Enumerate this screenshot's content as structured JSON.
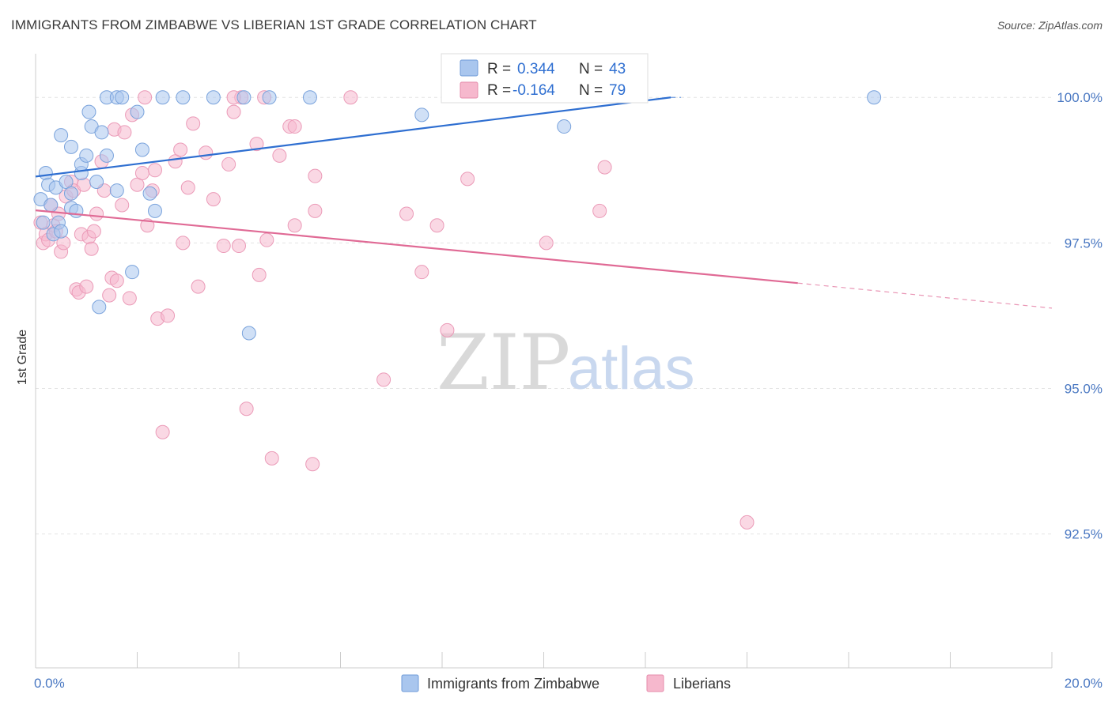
{
  "title": "IMMIGRANTS FROM ZIMBABWE VS LIBERIAN 1ST GRADE CORRELATION CHART",
  "source": "Source: ZipAtlas.com",
  "watermark": {
    "part1": "ZIP",
    "part2": "atlas"
  },
  "colors": {
    "blue_fill": "#a9c6ee",
    "blue_line": "#2f6fd1",
    "pink_fill": "#f6b8cd",
    "pink_line": "#e06a95",
    "tick_text": "#4a78c2"
  },
  "legend": {
    "series1": {
      "r_label": "R =",
      "r_value": "0.344",
      "n_label": "N =",
      "n_value": "43"
    },
    "series2": {
      "r_label": "R =",
      "r_value": "-0.164",
      "n_label": "N =",
      "n_value": "79"
    }
  },
  "chart_data": {
    "type": "scatter",
    "xlabel": "",
    "ylabel": "1st Grade",
    "xlim": [
      0,
      20
    ],
    "ylim": [
      90.2,
      100.75
    ],
    "x_tick_labels": [
      "0.0%",
      "20.0%"
    ],
    "y_ticks": [
      100.0,
      97.5,
      95.0,
      92.5
    ],
    "y_tick_labels": [
      "100.0%",
      "97.5%",
      "95.0%",
      "92.5%"
    ],
    "series": [
      {
        "name": "Immigrants from Zimbabwe",
        "color": "#a9c6ee",
        "trend": {
          "x": [
            0,
            12.5
          ],
          "y": [
            98.64,
            100.0
          ],
          "dashed_to": [
            12.7,
            100.0
          ]
        },
        "points": [
          [
            0.1,
            98.25
          ],
          [
            0.15,
            97.85
          ],
          [
            0.2,
            98.7
          ],
          [
            0.25,
            98.5
          ],
          [
            0.3,
            98.15
          ],
          [
            0.35,
            97.65
          ],
          [
            0.4,
            98.45
          ],
          [
            0.45,
            97.85
          ],
          [
            0.5,
            97.7
          ],
          [
            0.5,
            99.35
          ],
          [
            0.6,
            98.55
          ],
          [
            0.7,
            98.35
          ],
          [
            0.7,
            98.1
          ],
          [
            0.7,
            99.15
          ],
          [
            0.8,
            98.05
          ],
          [
            0.9,
            98.7
          ],
          [
            0.9,
            98.85
          ],
          [
            1.0,
            99.0
          ],
          [
            1.05,
            99.75
          ],
          [
            1.1,
            99.5
          ],
          [
            1.2,
            98.55
          ],
          [
            1.25,
            96.4
          ],
          [
            1.3,
            99.4
          ],
          [
            1.4,
            99.0
          ],
          [
            1.6,
            98.4
          ],
          [
            1.9,
            97.0
          ],
          [
            2.0,
            99.75
          ],
          [
            2.1,
            99.1
          ],
          [
            2.25,
            98.35
          ],
          [
            2.35,
            98.05
          ],
          [
            1.4,
            100.0
          ],
          [
            1.6,
            100.0
          ],
          [
            1.7,
            100.0
          ],
          [
            2.5,
            100.0
          ],
          [
            2.9,
            100.0
          ],
          [
            3.5,
            100.0
          ],
          [
            4.1,
            100.0
          ],
          [
            4.6,
            100.0
          ],
          [
            5.4,
            100.0
          ],
          [
            4.2,
            95.95
          ],
          [
            7.6,
            99.7
          ],
          [
            10.4,
            99.5
          ],
          [
            16.5,
            100.0
          ]
        ]
      },
      {
        "name": "Liberians",
        "color": "#f6b8cd",
        "trend": {
          "x": [
            0,
            15.0
          ],
          "y": [
            98.06,
            96.81
          ],
          "dashed_to": [
            20.0,
            96.38
          ]
        },
        "points": [
          [
            0.1,
            97.85
          ],
          [
            0.15,
            97.5
          ],
          [
            0.2,
            97.65
          ],
          [
            0.25,
            97.55
          ],
          [
            0.3,
            98.15
          ],
          [
            0.35,
            97.8
          ],
          [
            0.4,
            97.7
          ],
          [
            0.45,
            98.0
          ],
          [
            0.5,
            97.35
          ],
          [
            0.55,
            97.5
          ],
          [
            0.6,
            98.3
          ],
          [
            0.7,
            98.55
          ],
          [
            0.75,
            98.4
          ],
          [
            0.8,
            96.7
          ],
          [
            0.85,
            96.65
          ],
          [
            0.9,
            97.65
          ],
          [
            0.95,
            98.5
          ],
          [
            1.0,
            96.75
          ],
          [
            1.05,
            97.6
          ],
          [
            1.1,
            97.4
          ],
          [
            1.15,
            97.7
          ],
          [
            1.2,
            98.0
          ],
          [
            1.3,
            98.9
          ],
          [
            1.35,
            98.4
          ],
          [
            1.45,
            96.6
          ],
          [
            1.5,
            96.9
          ],
          [
            1.55,
            99.45
          ],
          [
            1.6,
            96.85
          ],
          [
            1.7,
            98.15
          ],
          [
            1.75,
            99.4
          ],
          [
            1.85,
            96.55
          ],
          [
            1.9,
            99.7
          ],
          [
            2.0,
            98.5
          ],
          [
            2.1,
            98.7
          ],
          [
            2.2,
            97.8
          ],
          [
            2.3,
            98.4
          ],
          [
            2.35,
            98.75
          ],
          [
            2.4,
            96.2
          ],
          [
            2.5,
            94.25
          ],
          [
            2.6,
            96.25
          ],
          [
            2.75,
            98.9
          ],
          [
            2.85,
            99.1
          ],
          [
            2.9,
            97.5
          ],
          [
            3.0,
            98.45
          ],
          [
            3.1,
            99.55
          ],
          [
            3.2,
            96.75
          ],
          [
            3.35,
            99.05
          ],
          [
            3.5,
            98.25
          ],
          [
            3.7,
            97.45
          ],
          [
            3.8,
            98.85
          ],
          [
            3.9,
            99.75
          ],
          [
            4.0,
            97.45
          ],
          [
            4.05,
            100.0
          ],
          [
            4.15,
            94.65
          ],
          [
            4.35,
            99.2
          ],
          [
            4.4,
            96.95
          ],
          [
            4.55,
            97.55
          ],
          [
            4.65,
            93.8
          ],
          [
            4.8,
            99.0
          ],
          [
            5.0,
            99.5
          ],
          [
            5.1,
            97.8
          ],
          [
            5.45,
            93.7
          ],
          [
            5.5,
            98.05
          ],
          [
            5.5,
            98.65
          ],
          [
            6.2,
            100.0
          ],
          [
            6.85,
            95.15
          ],
          [
            7.3,
            98.0
          ],
          [
            7.6,
            97.0
          ],
          [
            7.9,
            97.8
          ],
          [
            8.1,
            96.0
          ],
          [
            8.5,
            98.6
          ],
          [
            10.05,
            97.5
          ],
          [
            11.1,
            98.05
          ],
          [
            11.2,
            98.8
          ],
          [
            14.0,
            92.7
          ],
          [
            2.15,
            100.0
          ],
          [
            4.5,
            100.0
          ],
          [
            5.1,
            99.5
          ],
          [
            3.9,
            100.0
          ]
        ]
      }
    ]
  }
}
